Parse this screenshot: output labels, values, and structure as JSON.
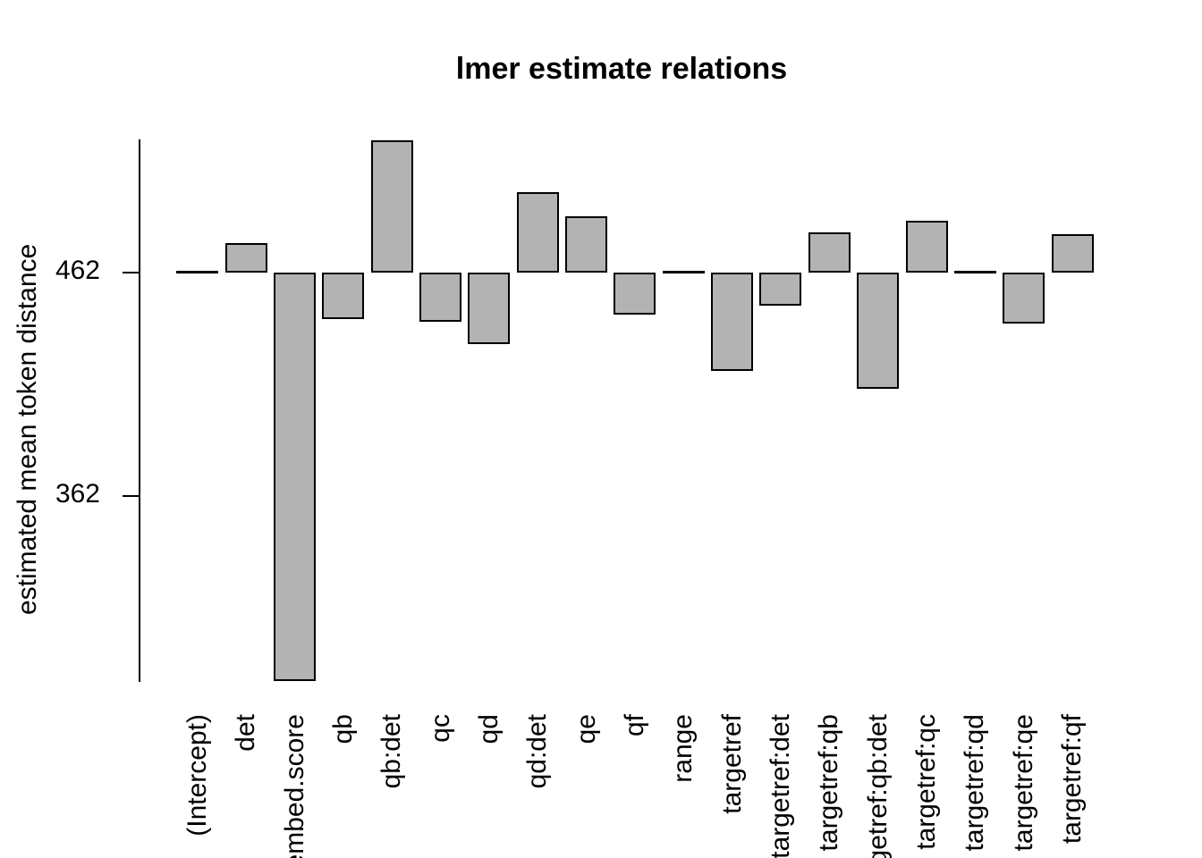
{
  "chart_data": {
    "type": "bar",
    "title": "lmer estimate relations",
    "ylabel": "estimated mean token distance",
    "xlabel": "",
    "baseline": 462,
    "categories": [
      "(Intercept)",
      "det",
      "embed.score",
      "qb",
      "qb:det",
      "qc",
      "qd",
      "qd:det",
      "qe",
      "qf",
      "range",
      "targetref",
      "targetref:det",
      "targetref:qb",
      "targetref:qb:det",
      "targetref:qc",
      "targetref:qd",
      "targetref:qe",
      "targetref:qf"
    ],
    "values": [
      462,
      475,
      279,
      441,
      521,
      440,
      430,
      498,
      487,
      443,
      462,
      418,
      447,
      480,
      410,
      485,
      462,
      439,
      479
    ],
    "yticks": [
      362,
      462
    ],
    "ylim": [
      278,
      522
    ],
    "grid": false,
    "legend": false,
    "bar_fill": "#b3b3b3",
    "bar_border": "#000000",
    "background": "#ffffff",
    "text_color": "#000000"
  }
}
